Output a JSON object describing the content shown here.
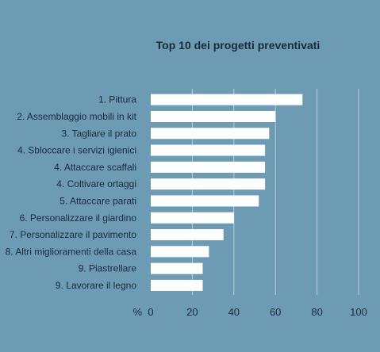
{
  "chart_data": {
    "type": "bar",
    "orientation": "horizontal",
    "title": "Top 10 dei progetti preventivati",
    "unit_label": "%",
    "categories": [
      "1. Pittura",
      "2. Assemblaggio mobili in kit",
      "3. Tagliare il prato",
      "4. Sbloccare i servizi igienici",
      "4. Attaccare scaffali",
      "4. Coltivare ortaggi",
      "5. Attaccare parati",
      "6. Personalizzare il giardino",
      "7. Personalizzare il pavimento",
      "8. Altri miglioramenti della casa",
      "9. Piastrellare",
      "9. Lavorare il legno"
    ],
    "values": [
      73,
      60,
      57,
      55,
      55,
      55,
      52,
      40,
      35,
      28,
      25,
      25
    ],
    "xlim": [
      0,
      100
    ],
    "xticks": [
      "0",
      "20",
      "40",
      "60",
      "80",
      "100"
    ],
    "grid": true,
    "colors": {
      "background": "#6c9bb3",
      "bar": "#ffffff",
      "grid": "#b9d0dc",
      "text": "#1a2a3a"
    }
  }
}
